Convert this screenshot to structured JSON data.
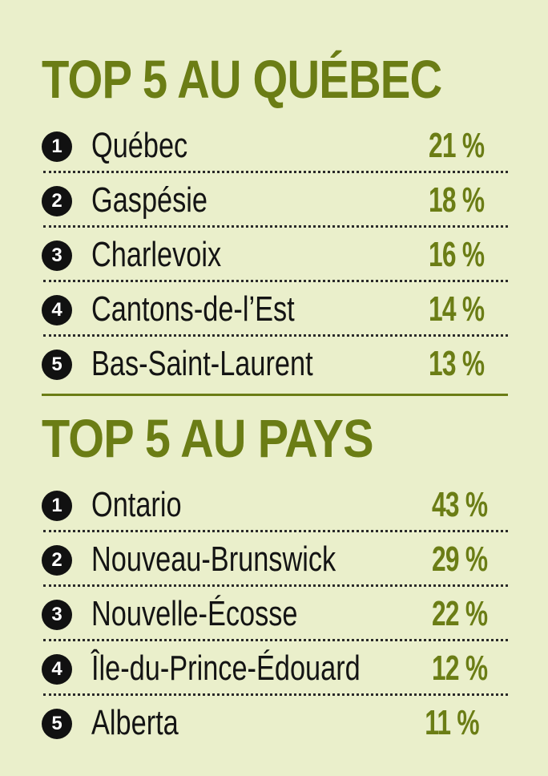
{
  "quebec": {
    "title": "TOP 5 AU QUÉBEC",
    "items": [
      {
        "rank": "1",
        "name": "Québec",
        "percent": "21 %"
      },
      {
        "rank": "2",
        "name": "Gaspésie",
        "percent": "18 %"
      },
      {
        "rank": "3",
        "name": "Charlevoix",
        "percent": "16 %"
      },
      {
        "rank": "4",
        "name": "Cantons-de-l’Est",
        "percent": "14 %"
      },
      {
        "rank": "5",
        "name": "Bas-Saint-Laurent",
        "percent": "13 %"
      }
    ]
  },
  "pays": {
    "title": "TOP 5 AU PAYS",
    "items": [
      {
        "rank": "1",
        "name": "Ontario",
        "percent": "43 %"
      },
      {
        "rank": "2",
        "name": "Nouveau-Brunswick",
        "percent": "29 %"
      },
      {
        "rank": "3",
        "name": "Nouvelle-Écosse",
        "percent": "22 %"
      },
      {
        "rank": "4",
        "name": "Île-du-Prince-Édouard",
        "percent": "12 %"
      },
      {
        "rank": "5",
        "name": "Alberta",
        "percent": "11 %"
      }
    ]
  },
  "colors": {
    "background": "#eaefcb",
    "accent": "#6b7d15",
    "text": "#141414",
    "badge": "#111111"
  }
}
